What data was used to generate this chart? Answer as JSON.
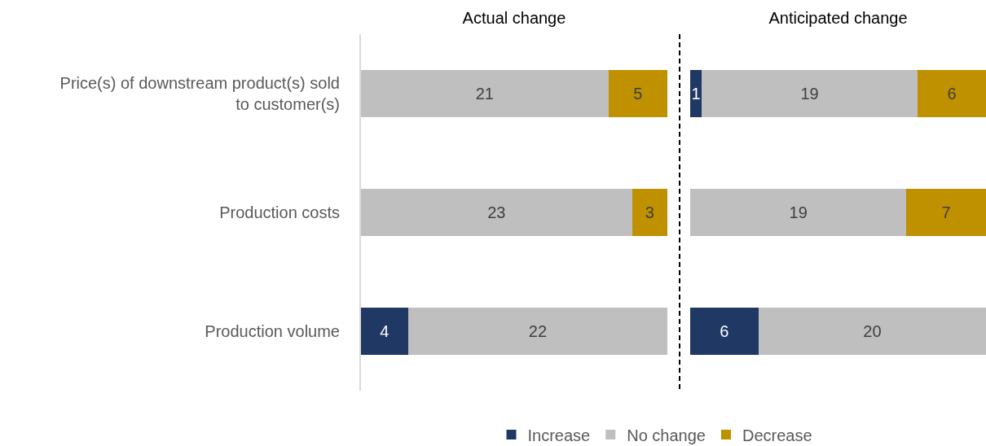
{
  "chart_data": [
    {
      "type": "bar",
      "orientation": "horizontal",
      "stacked": true,
      "title": "Actual change",
      "categories": [
        "Price(s) of downstream product(s) sold to customer(s)",
        "Production costs",
        "Production volume"
      ],
      "series": [
        {
          "name": "Increase",
          "color": "#1f3864",
          "values": [
            null,
            null,
            4
          ]
        },
        {
          "name": "No change",
          "color": "#bfbfbf",
          "values": [
            21,
            23,
            22
          ]
        },
        {
          "name": "Decrease",
          "color": "#bf9000",
          "values": [
            5,
            3,
            null
          ]
        }
      ],
      "xlim": [
        0,
        26
      ],
      "tick_labels": "y",
      "data_labels": true,
      "grid": false,
      "legend": "bottom"
    },
    {
      "type": "bar",
      "orientation": "horizontal",
      "stacked": true,
      "title": "Anticipated change",
      "categories": [
        null,
        null,
        null
      ],
      "series": [
        {
          "color": "#1f3864",
          "values": [
            1,
            null,
            6
          ]
        },
        {
          "color": "#bfbfbf",
          "values": [
            19,
            19,
            20
          ]
        },
        {
          "color": "#bf9000",
          "values": [
            6,
            7,
            null
          ]
        }
      ],
      "xlim": [
        0,
        26
      ],
      "tick_labels": false,
      "data_labels": true,
      "grid": false,
      "legend": false
    }
  ]
}
